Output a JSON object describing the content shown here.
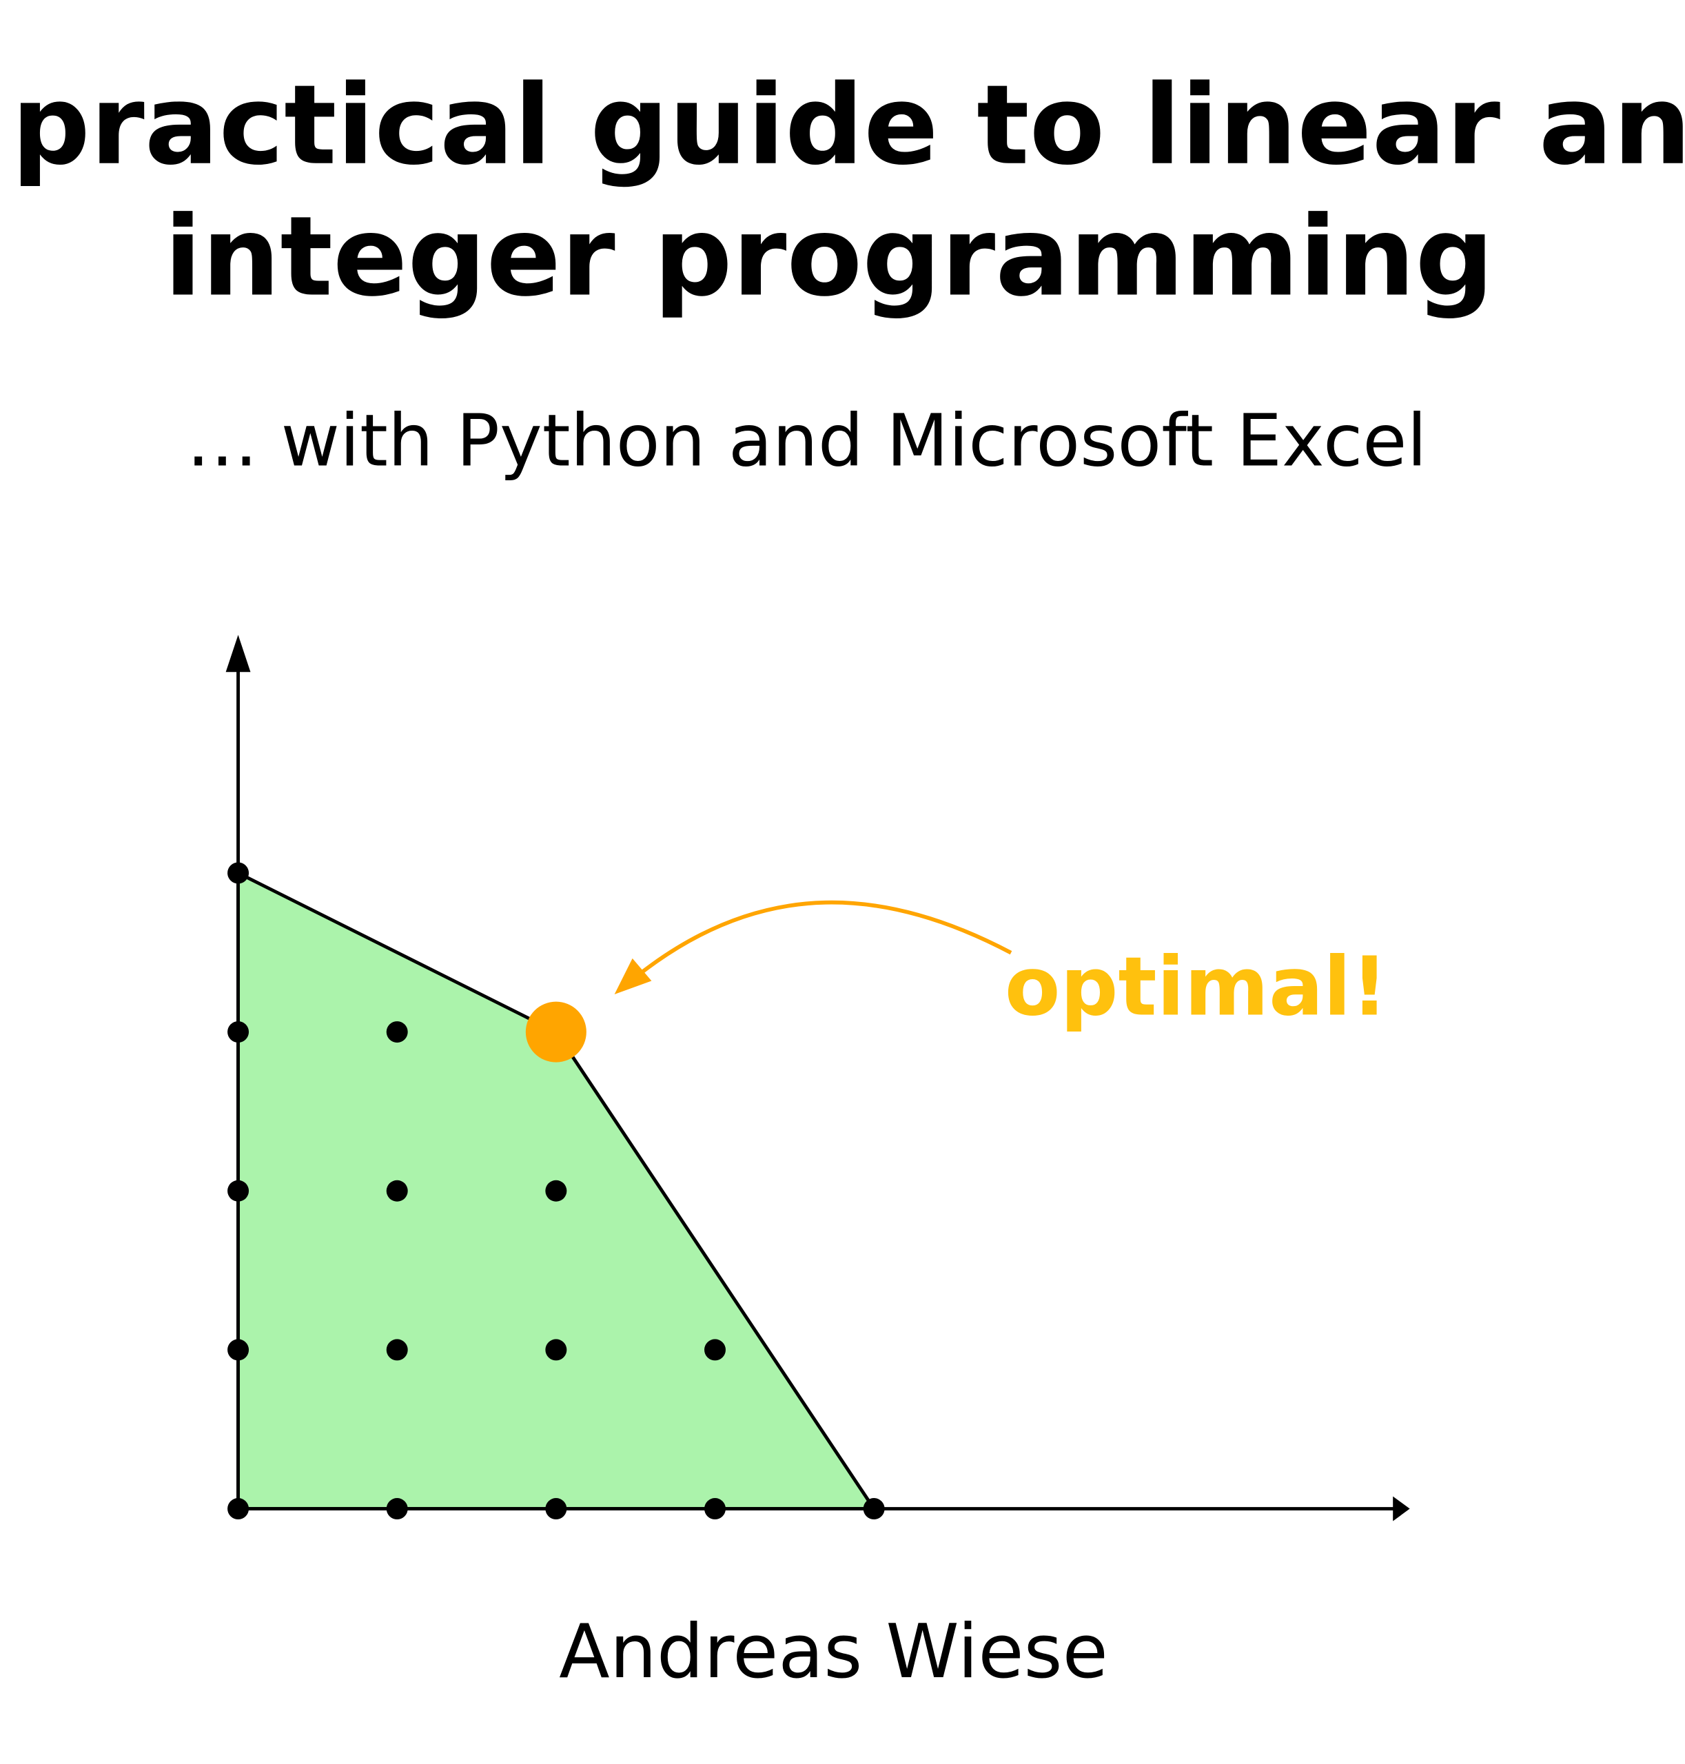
{
  "title": {
    "line1": "A practical guide to linear and",
    "line2": "integer programming"
  },
  "subtitle": "… with Python and Microsoft Excel",
  "author": "Andreas Wiese",
  "figure": {
    "annotation": "optimal!",
    "feasible_region_vertices": [
      [
        0,
        4
      ],
      [
        2,
        3
      ],
      [
        4,
        0
      ],
      [
        0,
        0
      ]
    ],
    "integer_points": [
      [
        0,
        0
      ],
      [
        1,
        0
      ],
      [
        2,
        0
      ],
      [
        3,
        0
      ],
      [
        4,
        0
      ],
      [
        0,
        1
      ],
      [
        1,
        1
      ],
      [
        2,
        1
      ],
      [
        3,
        1
      ],
      [
        0,
        2
      ],
      [
        1,
        2
      ],
      [
        2,
        2
      ],
      [
        0,
        3
      ],
      [
        1,
        3
      ],
      [
        0,
        4
      ]
    ],
    "optimal_point": [
      2,
      3
    ],
    "colors": {
      "region": "#ABF3AB",
      "optimal_point": "#FFA500",
      "arrow": "#FFA500",
      "annotation": "#FFC10E",
      "points": "#000000"
    }
  }
}
